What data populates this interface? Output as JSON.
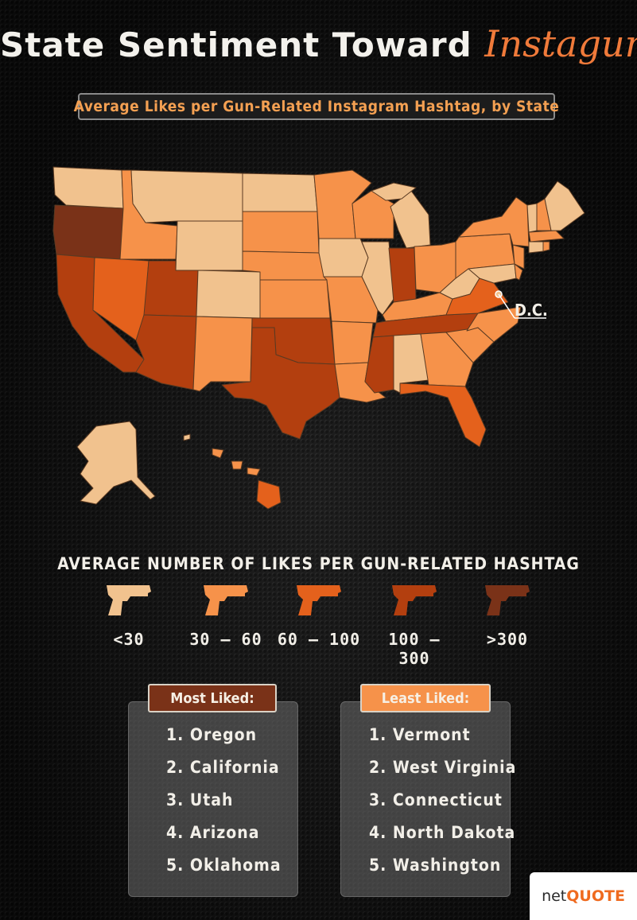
{
  "title": {
    "main": "State Sentiment Toward",
    "script": "Instagun"
  },
  "subtitle": "Average Likes per Gun-Related Instagram Hashtag, by State",
  "map": {
    "dc_label": "D.C."
  },
  "colors": {
    "lt30": "#f1c28e",
    "30_60": "#f6924a",
    "60_100": "#e4611c",
    "100_300": "#b33f0f",
    "gt300": "#7a3218"
  },
  "legend": {
    "title": "AVERAGE NUMBER OF LIKES PER GUN-RELATED HASHTAG",
    "items": [
      {
        "label": "<30",
        "color": "#f1c28e"
      },
      {
        "label": "30 – 60",
        "color": "#f6924a"
      },
      {
        "label": "60 – 100",
        "color": "#e4611c"
      },
      {
        "label": "100 – 300",
        "color": "#b33f0f"
      },
      {
        "label": ">300",
        "color": "#7a3218"
      }
    ]
  },
  "most_liked": {
    "heading": "Most Liked:",
    "items": [
      "1. Oregon",
      "2. California",
      "3. Utah",
      "4. Arizona",
      "5. Oklahoma"
    ]
  },
  "least_liked": {
    "heading": "Least Liked:",
    "items": [
      "1. Vermont",
      "2. West Virginia",
      "3. Connecticut",
      "4. North Dakota",
      "5. Washington"
    ]
  },
  "logo": {
    "net": "net",
    "quote": "QUOTE"
  }
}
